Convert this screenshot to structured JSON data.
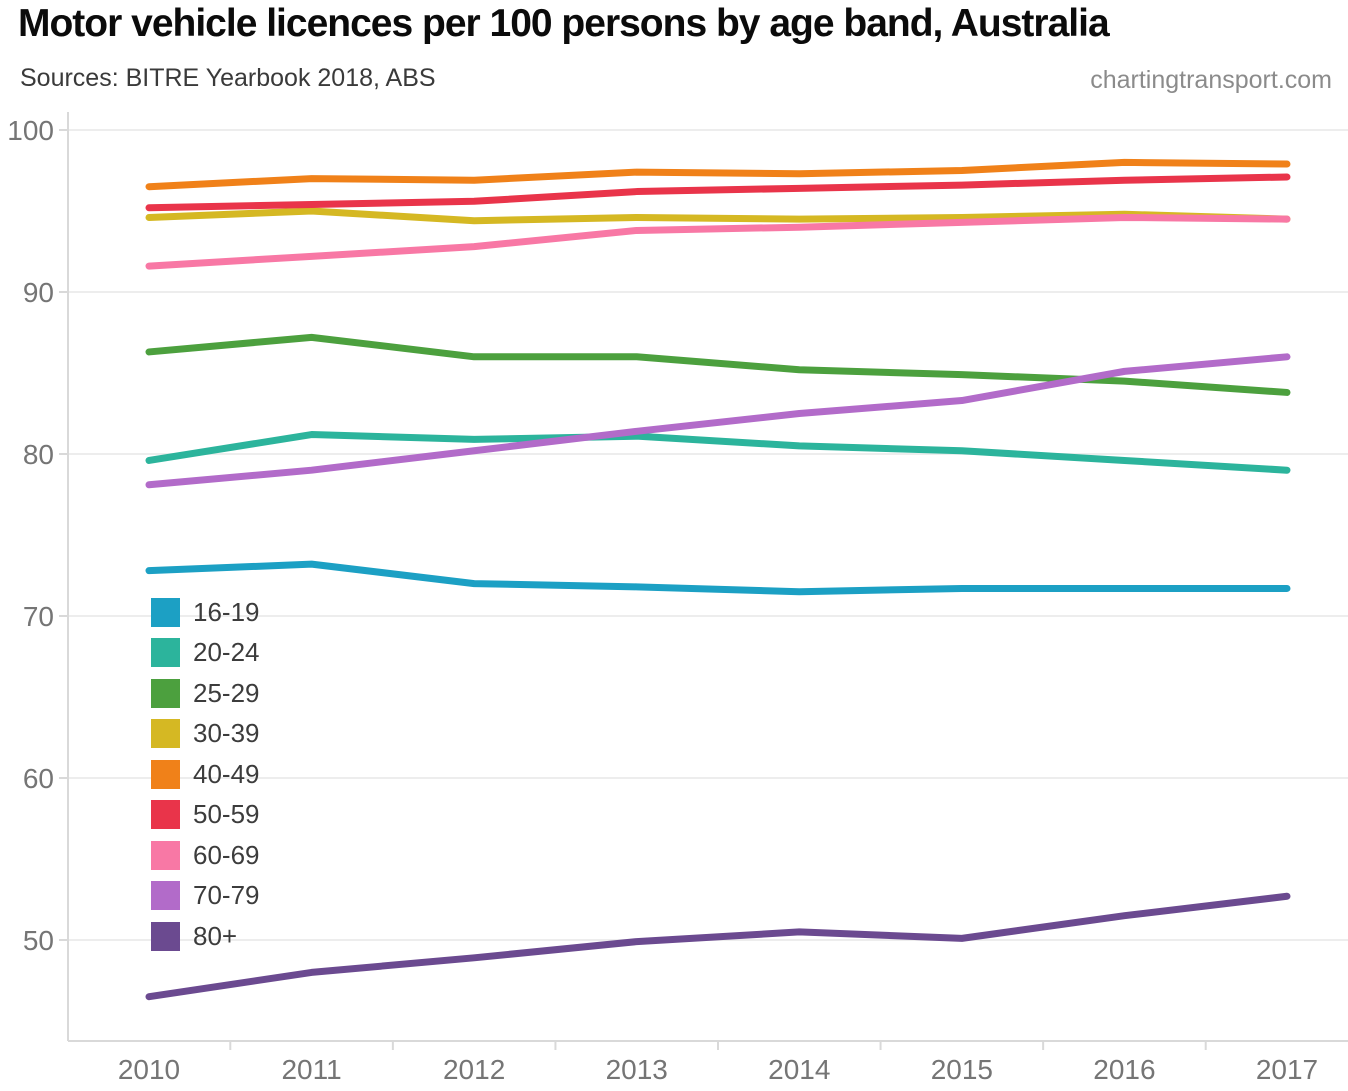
{
  "header": {
    "title": "Motor vehicle licences per 100 persons by age band, Australia",
    "source": "Sources: BITRE Yearbook 2018, ABS",
    "watermark": "chartingtransport.com"
  },
  "chart_data": {
    "type": "line",
    "title": "Motor vehicle licences per 100 persons by age band, Australia",
    "subtitle": "Sources: BITRE Yearbook 2018, ABS",
    "watermark": "chartingtransport.com",
    "xlabel": "",
    "ylabel": "",
    "x": [
      2010,
      2011,
      2012,
      2013,
      2014,
      2015,
      2016,
      2017
    ],
    "xlim": [
      2010,
      2017
    ],
    "ylim": [
      44.5,
      101
    ],
    "yticks": [
      50,
      60,
      70,
      80,
      90,
      100
    ],
    "grid": true,
    "legend_position": "inside-left-middle",
    "series": [
      {
        "name": "16-19",
        "color": "#1CA0C4",
        "values": [
          72.8,
          73.2,
          72.0,
          71.8,
          71.5,
          71.7,
          71.7,
          71.7
        ]
      },
      {
        "name": "20-24",
        "color": "#2CB49C",
        "values": [
          79.6,
          81.2,
          80.9,
          81.1,
          80.5,
          80.2,
          79.6,
          79.0
        ]
      },
      {
        "name": "25-29",
        "color": "#4CA03E",
        "values": [
          86.3,
          87.2,
          86.0,
          86.0,
          85.2,
          84.9,
          84.5,
          83.8
        ]
      },
      {
        "name": "30-39",
        "color": "#D5B823",
        "values": [
          94.6,
          95.0,
          94.4,
          94.6,
          94.5,
          94.6,
          94.8,
          94.5
        ]
      },
      {
        "name": "40-49",
        "color": "#F08119",
        "values": [
          96.5,
          97.0,
          96.9,
          97.4,
          97.3,
          97.5,
          98.0,
          97.9
        ]
      },
      {
        "name": "50-59",
        "color": "#E9344A",
        "values": [
          95.2,
          95.4,
          95.6,
          96.2,
          96.4,
          96.6,
          96.9,
          97.1
        ]
      },
      {
        "name": "60-69",
        "color": "#F878A5",
        "values": [
          91.6,
          92.2,
          92.8,
          93.8,
          94.0,
          94.3,
          94.6,
          94.5
        ]
      },
      {
        "name": "70-79",
        "color": "#B26BC9",
        "values": [
          78.1,
          79.0,
          80.2,
          81.4,
          82.5,
          83.3,
          85.1,
          86.0
        ]
      },
      {
        "name": "80+",
        "color": "#6B4A90",
        "values": [
          46.5,
          48.0,
          48.9,
          49.9,
          50.5,
          50.1,
          51.5,
          52.7
        ]
      }
    ],
    "style_colors": {
      "grid": "#ededed",
      "axis_line": "#d9d9d9",
      "tick": "#d9d9d9",
      "axis_text": "#757575",
      "legend_text": "#3c3c3c",
      "background": "#ffffff"
    }
  }
}
